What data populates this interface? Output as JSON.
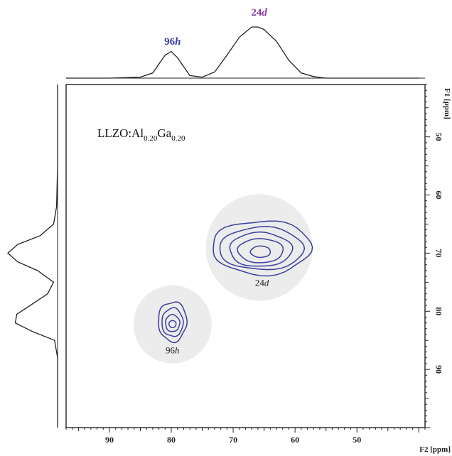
{
  "chart_data": {
    "type": "contour-2d",
    "x_axis": {
      "label": "F2 [ppm]",
      "range": [
        97,
        39
      ],
      "ticks": [
        "90",
        "80",
        "70",
        "60",
        "50"
      ],
      "tick_values": [
        90,
        80,
        70,
        60,
        50
      ]
    },
    "y_axis": {
      "label": "F1 [ppm]",
      "range": [
        41,
        100
      ],
      "ticks": [
        "50",
        "60",
        "70",
        "80",
        "90"
      ],
      "tick_values": [
        50,
        60,
        70,
        80,
        90
      ]
    },
    "sample_label": {
      "base": "LLZO:Al",
      "sub1": "0.20",
      "mid": "Ga",
      "sub2": "0.20"
    },
    "peaks": [
      {
        "site": "96h",
        "num": "96",
        "ital": "h",
        "f2": 79.8,
        "f1": 82.0,
        "color": "#3b3fa0"
      },
      {
        "site": "24d",
        "num": "24",
        "ital": "d",
        "f2": 65.8,
        "f1": 70.0,
        "color": "#8a3aa0"
      }
    ],
    "top_projection": {
      "x": [
        97,
        90,
        85,
        83,
        81,
        80,
        79,
        77,
        75,
        73,
        71,
        69,
        67,
        66,
        65,
        63,
        61,
        59,
        57,
        55,
        50,
        45,
        40
      ],
      "y": [
        0.0,
        0.0,
        0.02,
        0.1,
        0.45,
        0.52,
        0.4,
        0.05,
        0.02,
        0.12,
        0.45,
        0.8,
        1.0,
        1.0,
        0.95,
        0.72,
        0.35,
        0.1,
        0.03,
        0.0,
        0.0,
        0.0,
        0.0
      ]
    },
    "left_projection": {
      "x": [
        41,
        55,
        62,
        65,
        67,
        68.5,
        70,
        71.5,
        73,
        75,
        77,
        79,
        80.5,
        82,
        83.5,
        85,
        88,
        95,
        100
      ],
      "y": [
        0.0,
        0.0,
        0.02,
        0.08,
        0.35,
        0.8,
        1.0,
        0.8,
        0.4,
        0.08,
        0.2,
        0.55,
        0.82,
        0.85,
        0.5,
        0.06,
        0.0,
        0.0,
        0.0
      ]
    },
    "contour_colour": "#3b3fa0",
    "highlight_fill": "#ececec"
  }
}
